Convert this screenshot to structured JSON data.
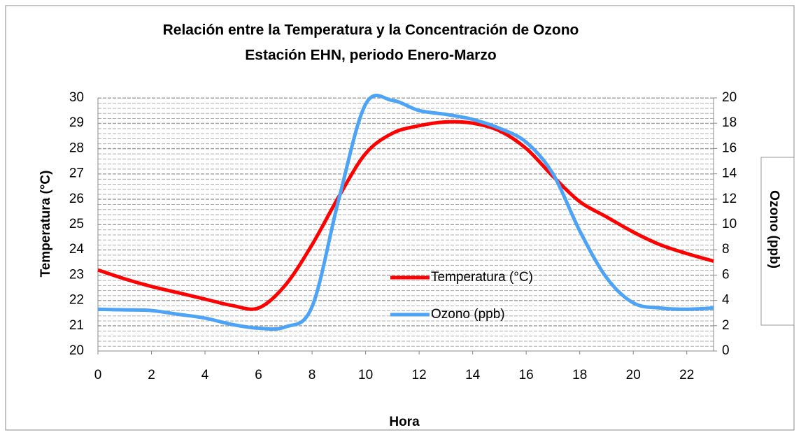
{
  "chart_data": {
    "type": "line",
    "title": "Relación entre la Temperatura y la Concentración de Ozono",
    "subtitle": "Estación EHN, periodo Enero-Marzo",
    "x_label": "Hora",
    "y_label": "Temperatura  (°C)",
    "y2_label": "Ozono (ppb)",
    "x": [
      0,
      1,
      2,
      3,
      4,
      5,
      6,
      7,
      8,
      9,
      10,
      11,
      12,
      13,
      14,
      15,
      16,
      17,
      18,
      19,
      20,
      21,
      22,
      23
    ],
    "xlim": [
      0,
      23
    ],
    "xticks": [
      0,
      2,
      4,
      6,
      8,
      10,
      12,
      14,
      16,
      18,
      20,
      22
    ],
    "ylim": [
      20,
      30
    ],
    "yticks": [
      20,
      21,
      22,
      23,
      24,
      25,
      26,
      27,
      28,
      29,
      30
    ],
    "y2lim": [
      0,
      20
    ],
    "y2ticks": [
      0,
      2,
      4,
      6,
      8,
      10,
      12,
      14,
      16,
      18,
      20
    ],
    "grid": true,
    "legend": "center",
    "series": [
      {
        "name": "Temperatura (°C)",
        "color": "#ff0000",
        "values": [
          23.2,
          22.85,
          22.55,
          22.3,
          22.05,
          21.8,
          21.7,
          22.6,
          24.2,
          26.1,
          27.8,
          28.6,
          28.9,
          29.05,
          29.0,
          28.7,
          28.0,
          26.9,
          25.9,
          25.3,
          24.7,
          24.2,
          23.85,
          23.55
        ]
      },
      {
        "name": "Ozono (ppb)",
        "color": "#4da3f5",
        "axis": "y2",
        "values": [
          3.3,
          3.25,
          3.2,
          2.9,
          2.6,
          2.1,
          1.8,
          1.9,
          3.5,
          12,
          19.5,
          19.8,
          19.0,
          18.7,
          18.3,
          17.6,
          16.5,
          14,
          9.5,
          5.8,
          3.8,
          3.4,
          3.3,
          3.4
        ]
      }
    ]
  }
}
